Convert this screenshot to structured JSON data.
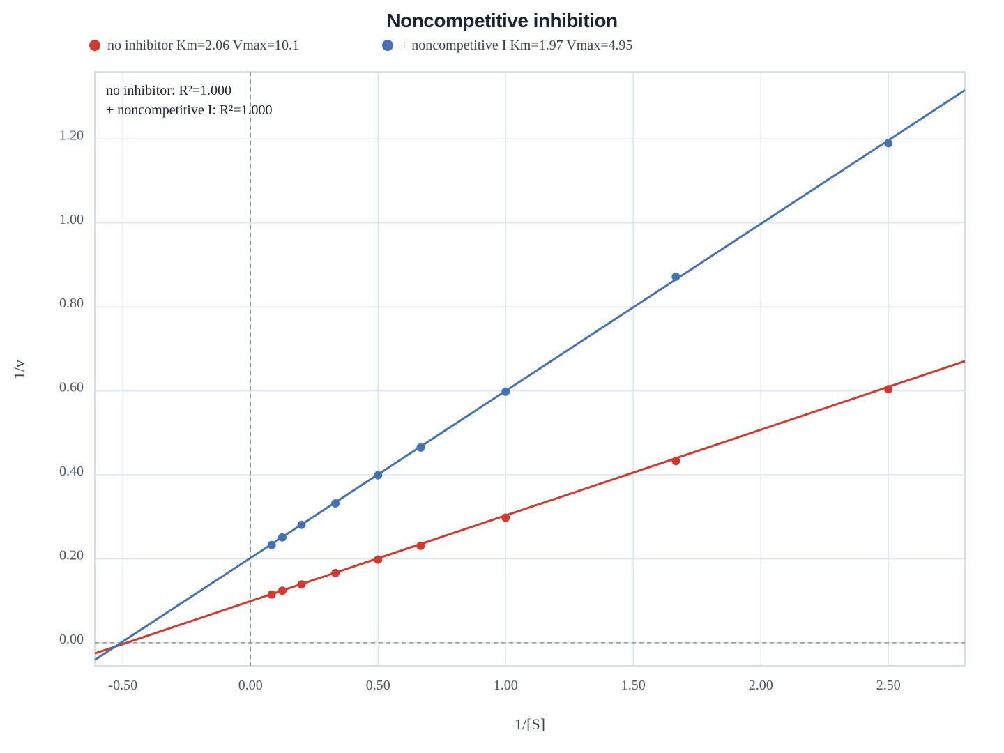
{
  "chart_data": {
    "type": "scatter",
    "title": "Noncompetitive inhibition",
    "xlabel": "1/[S]",
    "ylabel": "1/v",
    "xlim": [
      -0.61,
      2.8
    ],
    "ylim": [
      -0.055,
      1.36
    ],
    "grid": true,
    "legend_position": "top",
    "x_ticks": [
      -0.5,
      0.0,
      0.5,
      1.0,
      1.5,
      2.0,
      2.5
    ],
    "x_tick_labels": [
      "-0.50",
      "0.00",
      "0.50",
      "1.00",
      "1.50",
      "2.00",
      "2.50"
    ],
    "y_ticks": [
      0.0,
      0.2,
      0.4,
      0.6,
      0.8,
      1.0,
      1.2
    ],
    "y_tick_labels": [
      "0.00",
      "0.20",
      "0.40",
      "0.60",
      "0.80",
      "1.00",
      "1.20"
    ],
    "reference_lines": {
      "x": 0,
      "y": 0
    },
    "annotations": [
      "no inhibitor: R²=1.000",
      "+ noncompetitive I: R²=1.000"
    ],
    "series": [
      {
        "name": "no inhibitor Km=2.06 Vmax=10.1",
        "color": "#d03a2f",
        "points": [
          {
            "x": 0.083,
            "y": 0.115
          },
          {
            "x": 0.125,
            "y": 0.124
          },
          {
            "x": 0.2,
            "y": 0.139
          },
          {
            "x": 0.333,
            "y": 0.166
          },
          {
            "x": 0.5,
            "y": 0.198
          },
          {
            "x": 0.667,
            "y": 0.231
          },
          {
            "x": 1.0,
            "y": 0.298
          },
          {
            "x": 1.667,
            "y": 0.433
          },
          {
            "x": 2.5,
            "y": 0.604
          }
        ],
        "fit": {
          "slope": 0.2042,
          "intercept": 0.0991
        }
      },
      {
        "name": "+ noncompetitive I Km=1.97 Vmax=4.95",
        "color": "#4672b0",
        "points": [
          {
            "x": 0.083,
            "y": 0.233
          },
          {
            "x": 0.125,
            "y": 0.251
          },
          {
            "x": 0.2,
            "y": 0.281
          },
          {
            "x": 0.333,
            "y": 0.332
          },
          {
            "x": 0.5,
            "y": 0.399
          },
          {
            "x": 0.667,
            "y": 0.465
          },
          {
            "x": 1.0,
            "y": 0.598
          },
          {
            "x": 1.667,
            "y": 0.872
          },
          {
            "x": 2.5,
            "y": 1.19
          }
        ],
        "fit": {
          "slope": 0.398,
          "intercept": 0.202
        }
      }
    ]
  }
}
